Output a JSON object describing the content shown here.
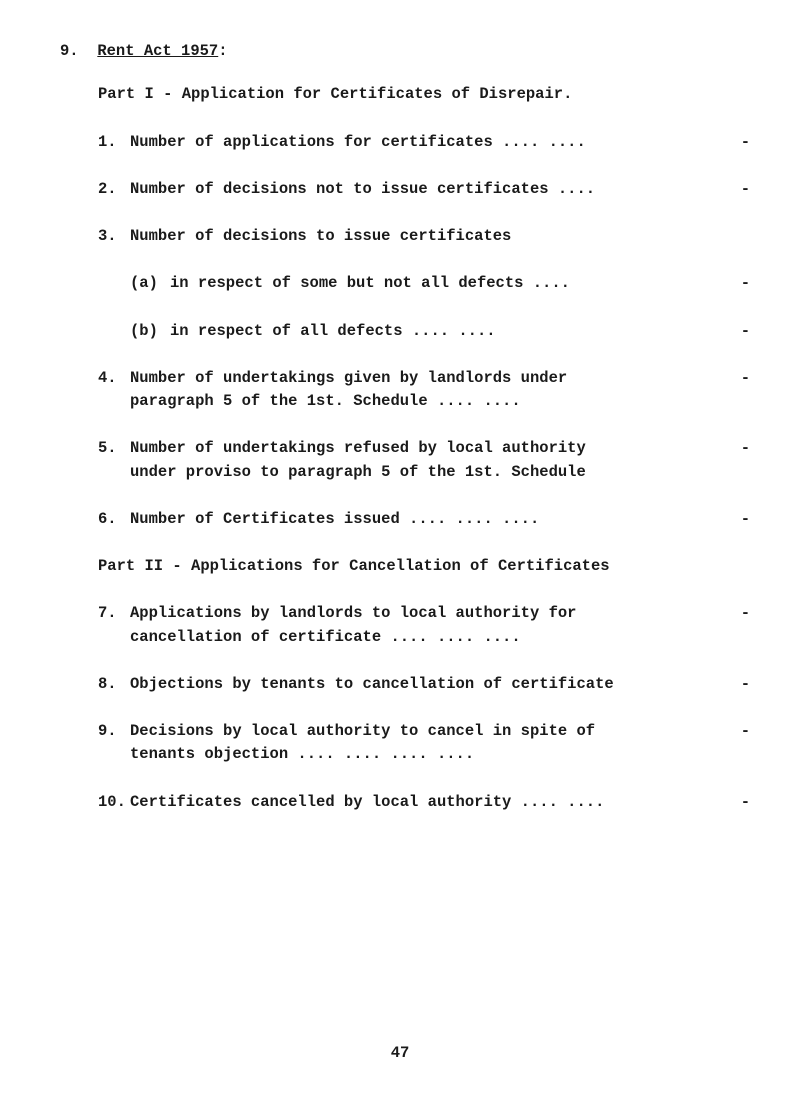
{
  "header": {
    "num": "9.",
    "title_underlined": "Rent Act 1957",
    "title_suffix": ":"
  },
  "part1_title": "Part I - Application for Certificates of Disrepair.",
  "items1": [
    {
      "num": "1.",
      "text": "Number of applications for certificates    ....   ....",
      "dash": "-"
    },
    {
      "num": "2.",
      "text": "Number of decisions not to issue certificates     ....",
      "dash": "-"
    },
    {
      "num": "3.",
      "text": "Number of decisions to issue certificates",
      "dash": ""
    }
  ],
  "subs": [
    {
      "label": "(a)",
      "text": "in respect of some but not all defects       ....",
      "dash": "-"
    },
    {
      "label": "(b)",
      "text": "in respect of all defects          ....    ....",
      "dash": "-"
    }
  ],
  "items2": [
    {
      "num": "4.",
      "text": "Number of undertakings given by landlords under\nparagraph 5 of the 1st. Schedule          ....   ....",
      "dash": "-"
    },
    {
      "num": "5.",
      "text": "Number of undertakings refused by local authority\nunder proviso to paragraph 5 of the 1st. Schedule",
      "dash": "-"
    },
    {
      "num": "6.",
      "text": "Number of Certificates issued      ....    ....   ....",
      "dash": "-"
    }
  ],
  "part2_title": "Part II - Applications for Cancellation of Certificates",
  "items3": [
    {
      "num": "7.",
      "text": "Applications by landlords to local authority for\ncancellation of certificate       ....   ....   ....",
      "dash": "-"
    },
    {
      "num": "8.",
      "text": "Objections by tenants to cancellation of certificate",
      "dash": "-"
    },
    {
      "num": "9.",
      "text": "Decisions by local authority to cancel in spite of\ntenants objection        ....   ....    ....   ....",
      "dash": "-"
    },
    {
      "num": "10.",
      "text": "Certificates cancelled by local authority ....   ....",
      "dash": "-"
    }
  ],
  "page_number": "47"
}
